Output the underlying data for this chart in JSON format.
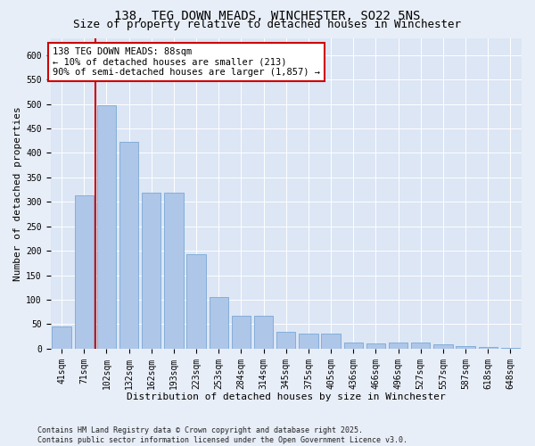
{
  "title_line1": "138, TEG DOWN MEADS, WINCHESTER, SO22 5NS",
  "title_line2": "Size of property relative to detached houses in Winchester",
  "xlabel": "Distribution of detached houses by size in Winchester",
  "ylabel": "Number of detached properties",
  "categories": [
    "41sqm",
    "71sqm",
    "102sqm",
    "132sqm",
    "162sqm",
    "193sqm",
    "223sqm",
    "253sqm",
    "284sqm",
    "314sqm",
    "345sqm",
    "375sqm",
    "405sqm",
    "436sqm",
    "466sqm",
    "496sqm",
    "527sqm",
    "557sqm",
    "587sqm",
    "618sqm",
    "648sqm"
  ],
  "values": [
    45,
    313,
    497,
    422,
    318,
    318,
    193,
    105,
    68,
    68,
    35,
    30,
    30,
    12,
    11,
    12,
    12,
    9,
    5,
    3,
    2
  ],
  "bar_color": "#aec6e8",
  "bar_edge_color": "#6a9fd0",
  "bar_width": 0.85,
  "vline_x_idx": 1,
  "vline_color": "#cc0000",
  "annotation_text": "138 TEG DOWN MEADS: 88sqm\n← 10% of detached houses are smaller (213)\n90% of semi-detached houses are larger (1,857) →",
  "annotation_box_color": "#ffffff",
  "annotation_box_edge": "#cc0000",
  "ylim": [
    0,
    635
  ],
  "yticks": [
    0,
    50,
    100,
    150,
    200,
    250,
    300,
    350,
    400,
    450,
    500,
    550,
    600
  ],
  "background_color": "#e8eef8",
  "plot_background": "#dce6f5",
  "footer_text": "Contains HM Land Registry data © Crown copyright and database right 2025.\nContains public sector information licensed under the Open Government Licence v3.0.",
  "title_fontsize": 10,
  "subtitle_fontsize": 9,
  "axis_label_fontsize": 8,
  "tick_fontsize": 7,
  "annotation_fontsize": 7.5,
  "grid_color": "#ffffff",
  "grid_alpha": 1.0
}
